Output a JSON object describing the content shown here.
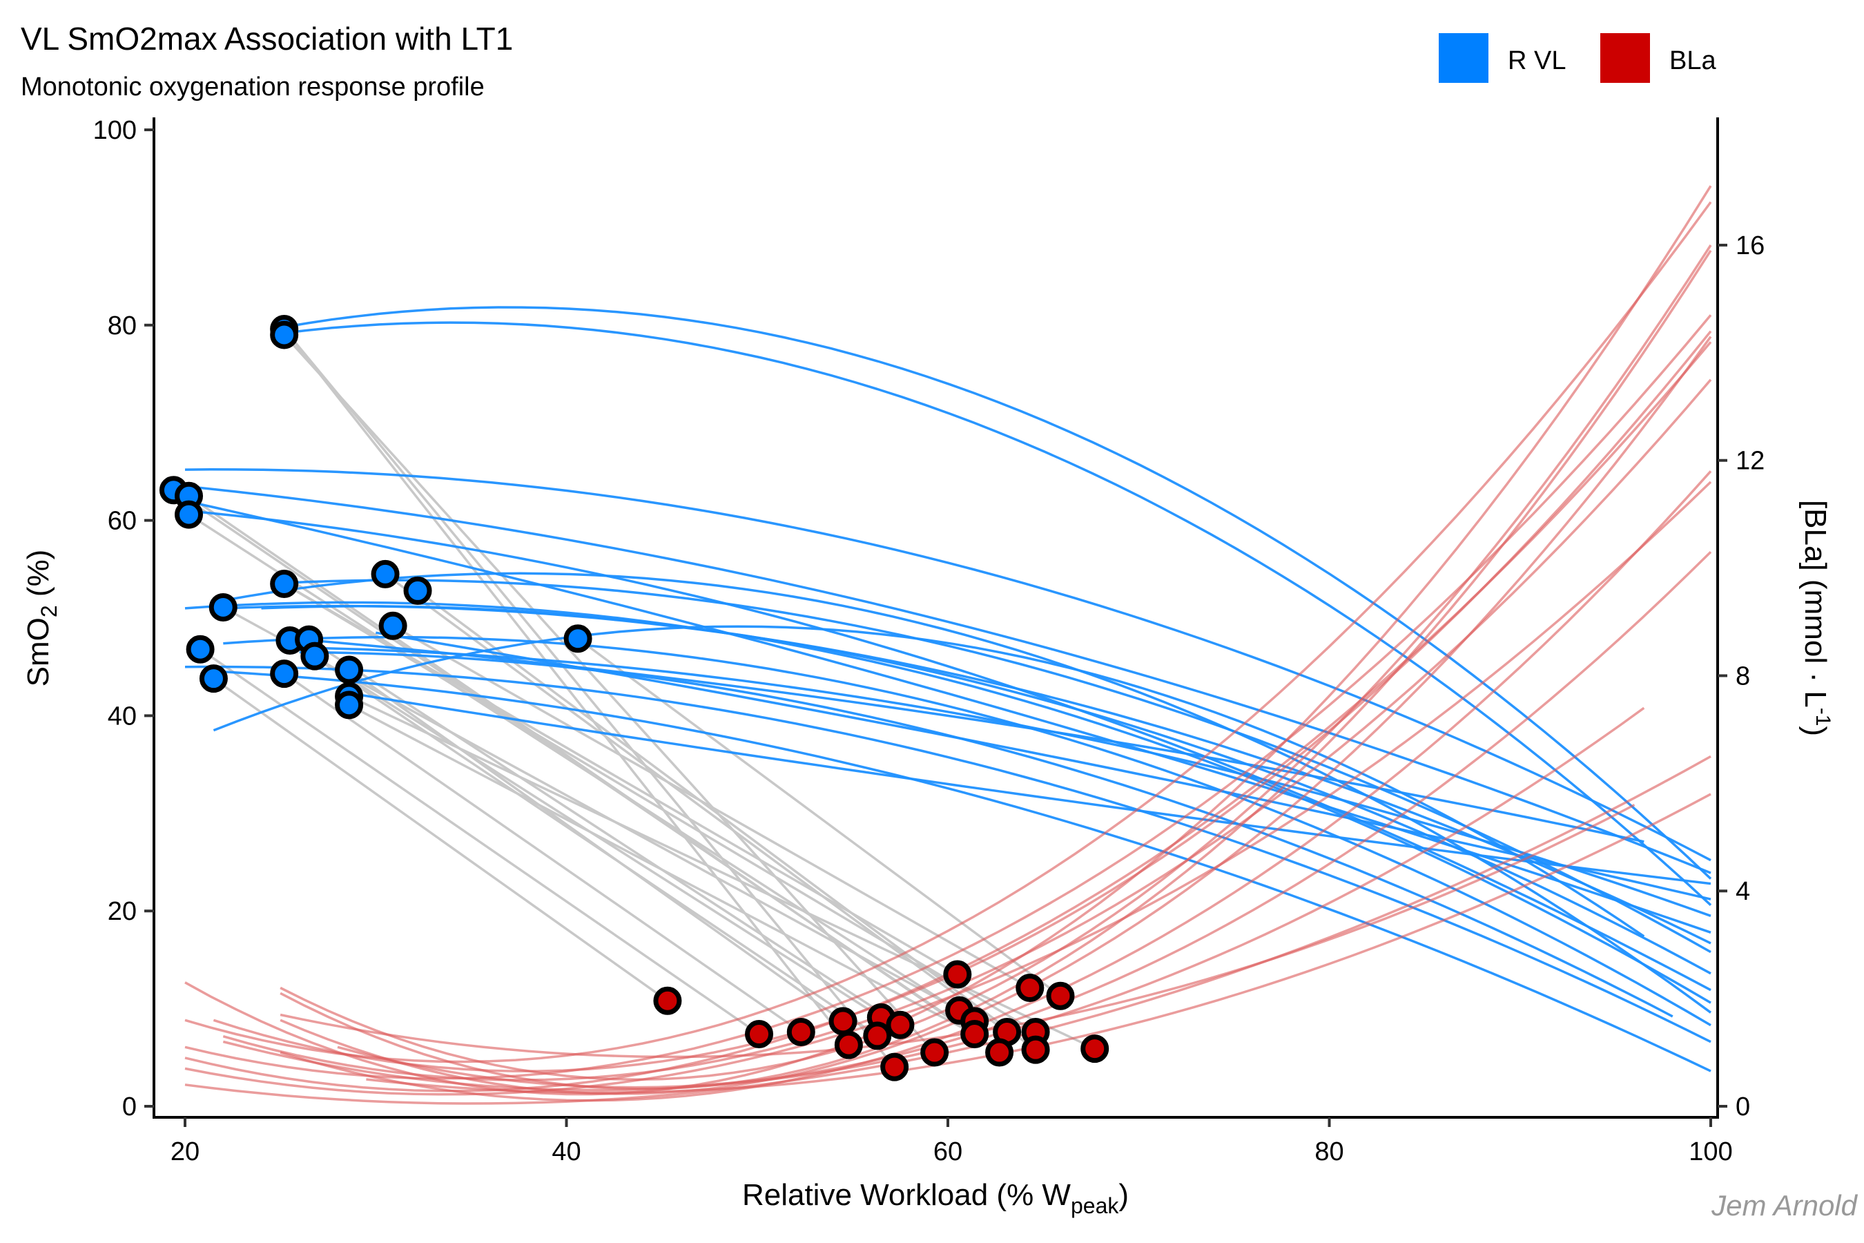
{
  "chart_data": {
    "type": "scatter",
    "title": "VL SmO2max Association with LT1",
    "subtitle": "Monotonic oxygenation response profile",
    "caption": "Jem Arnold",
    "xlabel": "Relative Workload (% W",
    "xlabel_sub": "peak",
    "xlabel_end": ")",
    "ylabel": "SmO",
    "ylabel_sub": "2",
    "ylabel_end": " (%)",
    "y2label": "[BLa] (mmol · L",
    "y2label_sup": "-1",
    "y2label_end": ")",
    "xlim": [
      18.4,
      100.4
    ],
    "ylim": [
      0,
      100
    ],
    "y2lim": [
      0,
      18.4
    ],
    "x_ticks": [
      20,
      40,
      60,
      80,
      100
    ],
    "y_ticks": [
      0,
      20,
      40,
      60,
      80,
      100
    ],
    "y2_ticks": [
      0,
      4,
      8,
      12,
      16
    ],
    "grid": false,
    "legend": {
      "position": "top-right",
      "entries": [
        {
          "label": "R VL",
          "color": "#0080FF"
        },
        {
          "label": "BLa",
          "color": "#CC0000"
        }
      ]
    },
    "colors": {
      "smo2": "#0080FF",
      "smo2_line": "#1E90FF",
      "bla": "#CC0000",
      "bla_line": "#DC5A5A",
      "connector": "#C8C8C8"
    },
    "series": [
      {
        "name": "R VL",
        "axis": "left",
        "points": [
          [
            25.2,
            79.6
          ],
          [
            25.2,
            79.0
          ],
          [
            19.4,
            63.1
          ],
          [
            20.2,
            62.5
          ],
          [
            20.2,
            60.6
          ],
          [
            25.2,
            53.5
          ],
          [
            30.5,
            54.5
          ],
          [
            32.2,
            52.8
          ],
          [
            22.0,
            51.1
          ],
          [
            30.9,
            49.2
          ],
          [
            40.6,
            47.9
          ],
          [
            25.5,
            47.7
          ],
          [
            26.5,
            47.8
          ],
          [
            26.8,
            46.1
          ],
          [
            20.8,
            46.8
          ],
          [
            28.6,
            44.7
          ],
          [
            25.2,
            44.3
          ],
          [
            21.5,
            43.8
          ],
          [
            28.6,
            42.0
          ],
          [
            28.6,
            41.1
          ]
        ],
        "curves": [
          [
            [
              25.2,
              79.8
            ],
            [
              60,
              74
            ],
            [
              100,
              23.3
            ]
          ],
          [
            [
              25.2,
              79.2
            ],
            [
              60,
              71
            ],
            [
              100,
              20.6
            ]
          ],
          [
            [
              20.0,
              65.2
            ],
            [
              55,
              58
            ],
            [
              100,
              25.2
            ]
          ],
          [
            [
              20.0,
              63.5
            ],
            [
              55,
              52
            ],
            [
              100,
              23.9
            ]
          ],
          [
            [
              20.0,
              61.0
            ],
            [
              55,
              48
            ],
            [
              100,
              11.9
            ]
          ],
          [
            [
              20.0,
              62.0
            ],
            [
              55,
              45
            ],
            [
              100,
              17.8
            ]
          ],
          [
            [
              22.0,
              51.0
            ],
            [
              50,
              48
            ],
            [
              100,
              16.7
            ]
          ],
          [
            [
              25.2,
              53.6
            ],
            [
              50,
              51
            ],
            [
              100,
              15.8
            ]
          ],
          [
            [
              22.0,
              51.8
            ],
            [
              35,
              54.5
            ],
            [
              100,
              9.6
            ]
          ],
          [
            [
              24.0,
              51.0
            ],
            [
              50,
              48
            ],
            [
              100,
              13.6
            ]
          ],
          [
            [
              20.0,
              51.0
            ],
            [
              55,
              46
            ],
            [
              100,
              10.6
            ]
          ],
          [
            [
              21.5,
              38.5
            ],
            [
              40,
              48
            ],
            [
              96.5,
              17.4
            ]
          ],
          [
            [
              22.0,
              47.4
            ],
            [
              50,
              45
            ],
            [
              100,
              8.3
            ]
          ],
          [
            [
              25.5,
              47.0
            ],
            [
              55,
              42
            ],
            [
              100,
              19.5
            ]
          ],
          [
            [
              20.0,
              45.0
            ],
            [
              55,
              38
            ],
            [
              100,
              6.6
            ]
          ],
          [
            [
              22.0,
              44.5
            ],
            [
              55,
              35
            ],
            [
              100,
              3.6
            ]
          ],
          [
            [
              25.0,
              48.0
            ],
            [
              60,
              40
            ],
            [
              96.5,
              27.1
            ]
          ],
          [
            [
              26.0,
              46.5
            ],
            [
              60,
              38
            ],
            [
              98.0,
              9.2
            ]
          ],
          [
            [
              28.0,
              42.5
            ],
            [
              60,
              33
            ],
            [
              100,
              22.8
            ]
          ],
          [
            [
              30.0,
              48.5
            ],
            [
              65,
              36
            ],
            [
              100,
              21.2
            ]
          ]
        ]
      },
      {
        "name": "BLa",
        "axis": "right",
        "points": [
          [
            45.3,
            1.96
          ],
          [
            50.1,
            1.34
          ],
          [
            52.3,
            1.38
          ],
          [
            54.5,
            1.58
          ],
          [
            54.8,
            1.14
          ],
          [
            56.5,
            1.65
          ],
          [
            56.3,
            1.31
          ],
          [
            57.5,
            1.51
          ],
          [
            57.2,
            0.73
          ],
          [
            59.3,
            1.0
          ],
          [
            60.5,
            2.45
          ],
          [
            60.6,
            1.78
          ],
          [
            61.4,
            1.58
          ],
          [
            61.4,
            1.34
          ],
          [
            63.1,
            1.38
          ],
          [
            62.7,
            1.0
          ],
          [
            64.3,
            2.2
          ],
          [
            64.6,
            1.38
          ],
          [
            64.6,
            1.05
          ],
          [
            65.9,
            2.05
          ],
          [
            67.7,
            1.07
          ]
        ],
        "curves": [
          [
            [
              20,
              2.3
            ],
            [
              60,
              2.0
            ],
            [
              100,
              17.1
            ]
          ],
          [
            [
              20,
              1.6
            ],
            [
              55,
              2.4
            ],
            [
              100,
              16.8
            ]
          ],
          [
            [
              25,
              2.2
            ],
            [
              60,
              1.8
            ],
            [
              100,
              16.0
            ]
          ],
          [
            [
              25,
              2.1
            ],
            [
              60,
              1.6
            ],
            [
              100,
              15.9
            ]
          ],
          [
            [
              20,
              1.1
            ],
            [
              55,
              2.0
            ],
            [
              100,
              14.7
            ]
          ],
          [
            [
              21.5,
              1.6
            ],
            [
              55,
              1.7
            ],
            [
              100,
              14.4
            ]
          ],
          [
            [
              25,
              1.6
            ],
            [
              60,
              1.5
            ],
            [
              100,
              14.3
            ]
          ],
          [
            [
              20,
              0.9
            ],
            [
              55,
              1.7
            ],
            [
              100,
              14.2
            ]
          ],
          [
            [
              22,
              1.3
            ],
            [
              55,
              1.5
            ],
            [
              100,
              13.5
            ]
          ],
          [
            [
              25,
              1.0
            ],
            [
              60,
              1.3
            ],
            [
              100,
              11.8
            ]
          ],
          [
            [
              20,
              0.7
            ],
            [
              55,
              1.4
            ],
            [
              100,
              11.6
            ]
          ],
          [
            [
              28,
              1.1
            ],
            [
              60,
              1.2
            ],
            [
              100,
              10.3
            ]
          ],
          [
            [
              22,
              1.2
            ],
            [
              60,
              1.1
            ],
            [
              96.5,
              7.4
            ]
          ],
          [
            [
              20,
              0.4
            ],
            [
              60,
              1.0
            ],
            [
              100,
              6.5
            ]
          ],
          [
            [
              29.5,
              0.5
            ],
            [
              60,
              0.8
            ],
            [
              100,
              5.8
            ]
          ],
          [
            [
              25,
              1.7
            ],
            [
              60,
              1.3
            ],
            [
              96.0,
              5.6
            ]
          ]
        ]
      }
    ],
    "connectors": [
      [
        0,
        8
      ],
      [
        0,
        4
      ],
      [
        1,
        9
      ],
      [
        2,
        13
      ],
      [
        3,
        15
      ],
      [
        4,
        12
      ],
      [
        5,
        10
      ],
      [
        5,
        17
      ],
      [
        6,
        14
      ],
      [
        7,
        18
      ],
      [
        8,
        11
      ],
      [
        9,
        16
      ],
      [
        10,
        19
      ],
      [
        11,
        6
      ],
      [
        12,
        7
      ],
      [
        13,
        5
      ],
      [
        14,
        1
      ],
      [
        15,
        3
      ],
      [
        16,
        2
      ],
      [
        17,
        0
      ],
      [
        18,
        20
      ],
      [
        19,
        13
      ]
    ]
  }
}
